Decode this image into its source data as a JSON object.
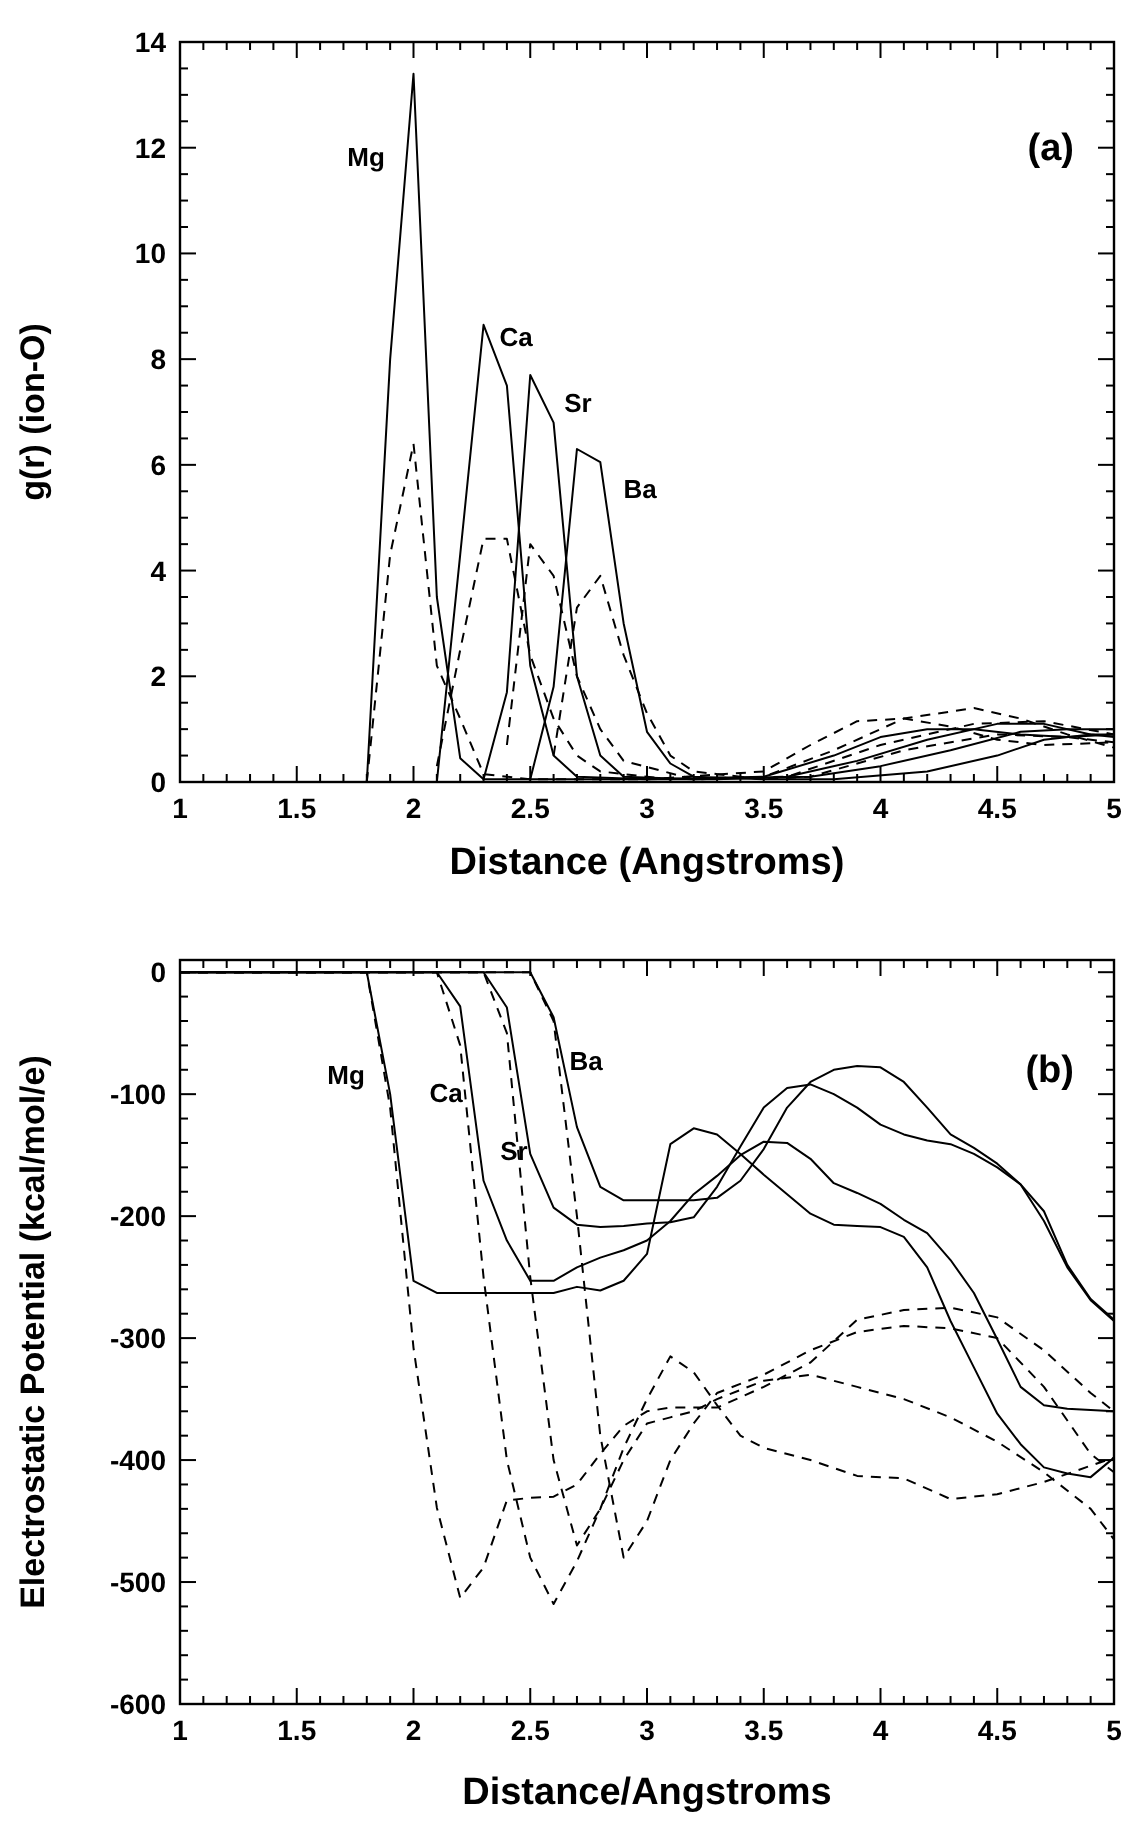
{
  "chart_data": [
    {
      "type": "line",
      "xlabel": "Distance (Angstroms)",
      "ylabel": "g(r) (ion-O)",
      "xlim": [
        1,
        5
      ],
      "ylim": [
        0,
        14
      ],
      "xticks": [
        1,
        {
          "value": 1.1,
          "label": null
        },
        {
          "value": 1.2,
          "label": null
        },
        {
          "value": 1.3,
          "label": null
        },
        {
          "value": 1.4,
          "label": null
        },
        1.5,
        {
          "value": 1.6,
          "label": null
        },
        {
          "value": 1.7,
          "label": null
        },
        {
          "value": 1.8,
          "label": null
        },
        {
          "value": 1.9,
          "label": null
        },
        2,
        {
          "value": 2.1,
          "label": null
        },
        {
          "value": 2.2,
          "label": null
        },
        {
          "value": 2.3,
          "label": null
        },
        {
          "value": 2.4,
          "label": null
        },
        2.5,
        {
          "value": 2.6,
          "label": null
        },
        {
          "value": 2.7,
          "label": null
        },
        {
          "value": 2.8,
          "label": null
        },
        {
          "value": 2.9,
          "label": null
        },
        3,
        {
          "value": 3.1,
          "label": null
        },
        {
          "value": 3.2,
          "label": null
        },
        {
          "value": 3.3,
          "label": null
        },
        {
          "value": 3.4,
          "label": null
        },
        3.5,
        {
          "value": 3.6,
          "label": null
        },
        {
          "value": 3.7,
          "label": null
        },
        {
          "value": 3.8,
          "label": null
        },
        {
          "value": 3.9,
          "label": null
        },
        4,
        {
          "value": 4.1,
          "label": null
        },
        {
          "value": 4.2,
          "label": null
        },
        {
          "value": 4.3,
          "label": null
        },
        {
          "value": 4.4,
          "label": null
        },
        4.5,
        {
          "value": 4.6,
          "label": null
        },
        {
          "value": 4.7,
          "label": null
        },
        {
          "value": 4.8,
          "label": null
        },
        {
          "value": 4.9,
          "label": null
        },
        5
      ],
      "yticks": [
        0,
        {
          "value": 0.5,
          "label": null
        },
        {
          "value": 1,
          "label": null
        },
        {
          "value": 1.5,
          "label": null
        },
        2,
        {
          "value": 2.5,
          "label": null
        },
        {
          "value": 3,
          "label": null
        },
        {
          "value": 3.5,
          "label": null
        },
        4,
        {
          "value": 4.5,
          "label": null
        },
        {
          "value": 5,
          "label": null
        },
        {
          "value": 5.5,
          "label": null
        },
        6,
        {
          "value": 6.5,
          "label": null
        },
        {
          "value": 7,
          "label": null
        },
        {
          "value": 7.5,
          "label": null
        },
        8,
        {
          "value": 8.5,
          "label": null
        },
        {
          "value": 9,
          "label": null
        },
        {
          "value": 9.5,
          "label": null
        },
        10,
        {
          "value": 10.5,
          "label": null
        },
        {
          "value": 11,
          "label": null
        },
        {
          "value": 11.5,
          "label": null
        },
        12,
        {
          "value": 12.5,
          "label": null
        },
        {
          "value": 13,
          "label": null
        },
        {
          "value": 13.5,
          "label": null
        },
        14
      ],
      "annotations": [
        "(a)",
        "Mg",
        "Ca",
        "Sr",
        "Ba"
      ],
      "series": [
        {
          "color": "#000000",
          "line_style": "solid",
          "x": [
            1.8,
            1.9,
            2.0,
            2.1,
            2.2,
            2.3,
            2.5,
            3.0,
            3.5,
            3.8,
            4.0,
            4.2,
            4.4,
            4.6,
            4.8,
            5.0
          ],
          "values": [
            0,
            8,
            13.4,
            3.5,
            0.45,
            0.05,
            0.05,
            0.05,
            0.1,
            0.5,
            0.85,
            1.0,
            1.0,
            0.9,
            0.85,
            0.9
          ]
        },
        {
          "color": "#000000",
          "line_style": "dashed",
          "x": [
            1.8,
            1.9,
            2.0,
            2.1,
            2.2,
            2.3,
            2.5,
            3.0,
            3.5,
            3.7,
            3.9,
            4.1,
            4.3,
            4.5,
            4.7,
            5.0
          ],
          "values": [
            0,
            4.3,
            6.4,
            2.2,
            1.2,
            0.15,
            0.05,
            0.05,
            0.2,
            0.7,
            1.15,
            1.2,
            1.05,
            0.8,
            0.7,
            0.75
          ]
        },
        {
          "color": "#000000",
          "line_style": "solid",
          "x": [
            2.1,
            2.2,
            2.3,
            2.4,
            2.5,
            2.6,
            2.7,
            3.0,
            3.3,
            3.6,
            3.9,
            4.2,
            4.5,
            4.7,
            4.9,
            5.0
          ],
          "values": [
            0,
            4.3,
            8.65,
            7.5,
            2.2,
            0.5,
            0.1,
            0.05,
            0.05,
            0.1,
            0.4,
            0.8,
            1.1,
            1.1,
            0.9,
            0.85
          ]
        },
        {
          "color": "#000000",
          "line_style": "dashed",
          "x": [
            2.1,
            2.2,
            2.3,
            2.4,
            2.5,
            2.6,
            2.7,
            2.8,
            3.1,
            3.5,
            3.8,
            4.1,
            4.4,
            4.6,
            4.8,
            5.0
          ],
          "values": [
            0.3,
            2.5,
            4.6,
            4.6,
            2.4,
            1.2,
            0.5,
            0.2,
            0.05,
            0.1,
            0.6,
            1.2,
            1.4,
            1.2,
            0.9,
            0.65
          ]
        },
        {
          "color": "#000000",
          "line_style": "solid",
          "x": [
            2.3,
            2.4,
            2.5,
            2.6,
            2.7,
            2.8,
            2.9,
            3.2,
            3.7,
            4.0,
            4.3,
            4.6,
            4.8,
            5.0
          ],
          "values": [
            0.05,
            1.7,
            7.7,
            6.8,
            2.0,
            0.5,
            0.1,
            0.05,
            0.1,
            0.3,
            0.6,
            0.95,
            1.0,
            1.0
          ]
        },
        {
          "color": "#000000",
          "line_style": "dashed",
          "x": [
            2.4,
            2.5,
            2.6,
            2.7,
            2.8,
            2.9,
            3.2,
            3.6,
            4.0,
            4.4,
            4.7,
            5.0
          ],
          "values": [
            0.7,
            4.5,
            3.9,
            2.0,
            1.0,
            0.4,
            0.05,
            0.1,
            0.7,
            1.1,
            1.15,
            0.9
          ]
        },
        {
          "color": "#000000",
          "line_style": "solid",
          "x": [
            2.5,
            2.6,
            2.7,
            2.8,
            2.9,
            3.0,
            3.1,
            3.2,
            3.5,
            3.8,
            4.2,
            4.5,
            4.7,
            4.9,
            5.0
          ],
          "values": [
            0.05,
            1.8,
            6.3,
            6.05,
            3.0,
            0.95,
            0.35,
            0.1,
            0.05,
            0.05,
            0.2,
            0.5,
            0.8,
            0.9,
            0.9
          ]
        },
        {
          "color": "#000000",
          "line_style": "dashed",
          "x": [
            2.6,
            2.7,
            2.8,
            2.9,
            3.0,
            3.1,
            3.2,
            3.5,
            3.7,
            4.1,
            4.5,
            4.8,
            5.0
          ],
          "values": [
            0.5,
            3.3,
            3.9,
            2.4,
            1.3,
            0.5,
            0.2,
            0.05,
            0.1,
            0.6,
            0.9,
            0.85,
            0.75
          ]
        }
      ]
    },
    {
      "type": "line",
      "xlabel": "Distance/Angstroms",
      "ylabel": "Electrostatic Potential (kcal/mol/e)",
      "xlim": [
        1,
        5
      ],
      "ylim": [
        -600,
        10
      ],
      "xticks": [
        1,
        {
          "value": 1.1,
          "label": null
        },
        {
          "value": 1.2,
          "label": null
        },
        {
          "value": 1.3,
          "label": null
        },
        {
          "value": 1.4,
          "label": null
        },
        1.5,
        {
          "value": 1.6,
          "label": null
        },
        {
          "value": 1.7,
          "label": null
        },
        {
          "value": 1.8,
          "label": null
        },
        {
          "value": 1.9,
          "label": null
        },
        2,
        {
          "value": 2.1,
          "label": null
        },
        {
          "value": 2.2,
          "label": null
        },
        {
          "value": 2.3,
          "label": null
        },
        {
          "value": 2.4,
          "label": null
        },
        2.5,
        {
          "value": 2.6,
          "label": null
        },
        {
          "value": 2.7,
          "label": null
        },
        {
          "value": 2.8,
          "label": null
        },
        {
          "value": 2.9,
          "label": null
        },
        3,
        {
          "value": 3.1,
          "label": null
        },
        {
          "value": 3.2,
          "label": null
        },
        {
          "value": 3.3,
          "label": null
        },
        {
          "value": 3.4,
          "label": null
        },
        3.5,
        {
          "value": 3.6,
          "label": null
        },
        {
          "value": 3.7,
          "label": null
        },
        {
          "value": 3.8,
          "label": null
        },
        {
          "value": 3.9,
          "label": null
        },
        4,
        {
          "value": 4.1,
          "label": null
        },
        {
          "value": 4.2,
          "label": null
        },
        {
          "value": 4.3,
          "label": null
        },
        {
          "value": 4.4,
          "label": null
        },
        4.5,
        {
          "value": 4.6,
          "label": null
        },
        {
          "value": 4.7,
          "label": null
        },
        {
          "value": 4.8,
          "label": null
        },
        {
          "value": 4.9,
          "label": null
        },
        5
      ],
      "yticks": [
        -600,
        {
          "value": -580,
          "label": null
        },
        {
          "value": -560,
          "label": null
        },
        {
          "value": -540,
          "label": null
        },
        {
          "value": -520,
          "label": null
        },
        -500,
        {
          "value": -480,
          "label": null
        },
        {
          "value": -460,
          "label": null
        },
        {
          "value": -440,
          "label": null
        },
        {
          "value": -420,
          "label": null
        },
        -400,
        {
          "value": -380,
          "label": null
        },
        {
          "value": -360,
          "label": null
        },
        {
          "value": -340,
          "label": null
        },
        {
          "value": -320,
          "label": null
        },
        -300,
        {
          "value": -280,
          "label": null
        },
        {
          "value": -260,
          "label": null
        },
        {
          "value": -240,
          "label": null
        },
        {
          "value": -220,
          "label": null
        },
        -200,
        {
          "value": -180,
          "label": null
        },
        {
          "value": -160,
          "label": null
        },
        {
          "value": -140,
          "label": null
        },
        {
          "value": -120,
          "label": null
        },
        -100,
        {
          "value": -80,
          "label": null
        },
        {
          "value": -60,
          "label": null
        },
        {
          "value": -40,
          "label": null
        },
        {
          "value": -20,
          "label": null
        },
        0
      ],
      "annotations": [
        "(b)",
        "Mg",
        "Ca",
        "Sr",
        "Ba"
      ],
      "series": [
        {
          "color": "#000000",
          "line_style": "solid",
          "x": [
            1,
            1.8,
            1.9,
            2.0,
            2.1,
            2.6,
            2.7,
            2.8,
            2.9,
            3.0,
            3.1,
            3.2,
            3.3,
            3.4,
            3.5,
            3.6,
            3.7,
            3.8,
            3.9,
            4.0,
            4.1,
            4.2,
            4.3,
            4.4,
            4.5,
            4.6,
            4.7,
            4.8,
            4.9,
            5.0
          ],
          "values": [
            0,
            0,
            -100,
            -253,
            -263,
            -263,
            -258,
            -261,
            -253,
            -231,
            -141,
            -128,
            -133,
            -149,
            -166,
            -182,
            -198,
            -207,
            -208,
            -209,
            -217,
            -242,
            -286,
            -324,
            -362,
            -387,
            -406,
            -411,
            -414,
            -398
          ]
        },
        {
          "color": "#000000",
          "line_style": "dashed",
          "x": [
            1,
            1.8,
            1.9,
            2.0,
            2.1,
            2.2,
            2.3,
            2.4,
            2.5,
            2.6,
            2.7,
            2.8,
            2.9,
            3.0,
            3.1,
            3.3,
            3.5,
            3.7,
            3.9,
            4.1,
            4.3,
            4.5,
            4.7,
            4.9,
            5.0
          ],
          "values": [
            0,
            0,
            -111,
            -308,
            -439,
            -513,
            -488,
            -433,
            -431,
            -430,
            -420,
            -395,
            -372,
            -360,
            -357,
            -357,
            -340,
            -320,
            -285,
            -277,
            -275,
            -283,
            -310,
            -345,
            -360
          ]
        },
        {
          "color": "#000000",
          "line_style": "solid",
          "x": [
            1,
            2.1,
            2.2,
            2.3,
            2.4,
            2.5,
            2.6,
            2.7,
            2.8,
            2.9,
            3.0,
            3.1,
            3.2,
            3.3,
            3.4,
            3.5,
            3.6,
            3.7,
            3.8,
            3.9,
            4.0,
            4.1,
            4.2,
            4.3,
            4.4,
            4.5,
            4.6,
            4.7,
            4.8,
            4.9,
            5.0
          ],
          "values": [
            0,
            0,
            -28,
            -171,
            -220,
            -253,
            -253,
            -242,
            -234,
            -228,
            -220,
            -204,
            -182,
            -167,
            -150,
            -139,
            -140,
            -153,
            -173,
            -181,
            -190,
            -203,
            -214,
            -236,
            -263,
            -301,
            -340,
            -355,
            -358,
            -359,
            -360
          ]
        },
        {
          "color": "#000000",
          "line_style": "dashed",
          "x": [
            1,
            2.1,
            2.2,
            2.3,
            2.4,
            2.5,
            2.6,
            2.7,
            2.8,
            2.9,
            3.0,
            3.1,
            3.2,
            3.3,
            3.4,
            3.5,
            3.7,
            3.9,
            4.1,
            4.3,
            4.5,
            4.7,
            5.0
          ],
          "values": [
            0,
            0,
            -60,
            -250,
            -400,
            -480,
            -518,
            -483,
            -440,
            -390,
            -350,
            -315,
            -328,
            -355,
            -380,
            -390,
            -400,
            -413,
            -415,
            -432,
            -428,
            -418,
            -398
          ]
        },
        {
          "color": "#000000",
          "line_style": "solid",
          "x": [
            1,
            2.3,
            2.4,
            2.5,
            2.6,
            2.7,
            2.8,
            2.9,
            3.0,
            3.1,
            3.2,
            3.3,
            3.4,
            3.5,
            3.6,
            3.7,
            3.8,
            3.9,
            4.0,
            4.1,
            4.2,
            4.3,
            4.4,
            4.5,
            4.6,
            4.7,
            4.8,
            4.9,
            5.0
          ],
          "values": [
            0,
            0,
            -29,
            -149,
            -193,
            -207,
            -209,
            -208,
            -206,
            -205,
            -201,
            -176,
            -143,
            -111,
            -95,
            -92,
            -100,
            -111,
            -125,
            -133,
            -138,
            -141,
            -149,
            -160,
            -174,
            -196,
            -240,
            -268,
            -285
          ]
        },
        {
          "color": "#000000",
          "line_style": "dashed",
          "x": [
            1,
            2.3,
            2.4,
            2.5,
            2.6,
            2.7,
            2.8,
            2.9,
            3.0,
            3.1,
            3.2,
            3.3,
            3.5,
            3.7,
            3.9,
            4.1,
            4.3,
            4.5,
            4.7,
            4.9,
            5.0
          ],
          "values": [
            0,
            0,
            -50,
            -250,
            -400,
            -470,
            -440,
            -400,
            -370,
            -365,
            -360,
            -350,
            -335,
            -330,
            -340,
            -350,
            -365,
            -385,
            -410,
            -440,
            -465
          ]
        },
        {
          "color": "#000000",
          "line_style": "solid",
          "x": [
            1,
            2.5,
            2.6,
            2.7,
            2.8,
            2.9,
            3.0,
            3.1,
            3.2,
            3.3,
            3.4,
            3.5,
            3.6,
            3.7,
            3.8,
            3.9,
            4.0,
            4.1,
            4.2,
            4.3,
            4.4,
            4.5,
            4.6,
            4.7,
            4.8,
            4.9,
            5.0
          ],
          "values": [
            0,
            0,
            -37,
            -127,
            -176,
            -187,
            -187,
            -187,
            -187,
            -185,
            -171,
            -145,
            -111,
            -90,
            -80,
            -77,
            -78,
            -90,
            -111,
            -133,
            -144,
            -157,
            -174,
            -204,
            -242,
            -269,
            -286
          ]
        },
        {
          "color": "#000000",
          "line_style": "dashed",
          "x": [
            1,
            2.5,
            2.6,
            2.7,
            2.8,
            2.9,
            3.0,
            3.1,
            3.2,
            3.3,
            3.5,
            3.7,
            3.9,
            4.1,
            4.3,
            4.5,
            4.7,
            4.9,
            5.0
          ],
          "values": [
            0,
            0,
            -40,
            -200,
            -380,
            -480,
            -450,
            -400,
            -370,
            -345,
            -330,
            -310,
            -295,
            -290,
            -292,
            -300,
            -340,
            -395,
            -410
          ]
        }
      ]
    }
  ]
}
